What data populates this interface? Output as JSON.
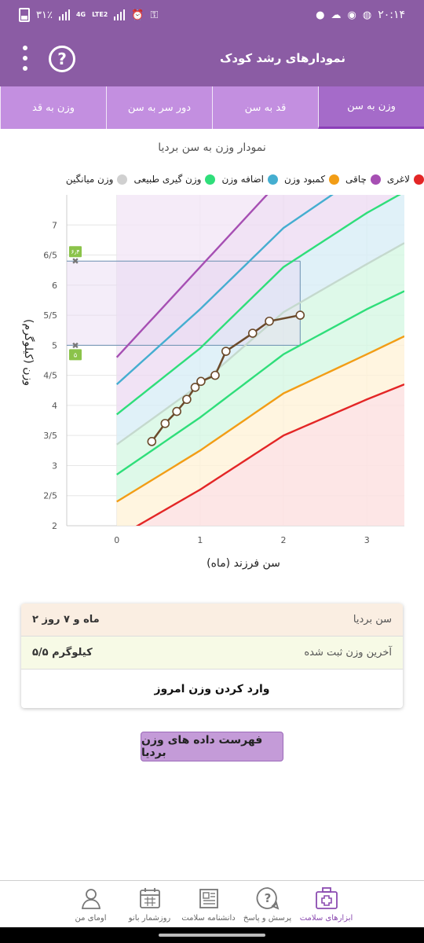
{
  "status_bar": {
    "time": "۲۰:۱۴",
    "battery": "۳۱٪",
    "network": [
      "4G",
      "LTE2"
    ]
  },
  "app_bar": {
    "title": "نمودارهای رشد کودک",
    "help_glyph": "?"
  },
  "tabs": [
    "وزن به سن",
    "قد به سن",
    "دور سر به سن",
    "وزن به قد"
  ],
  "chart_title": "نمودار وزن به سن بردیا",
  "legend": [
    {
      "label": "لاغری",
      "color": "#e32626"
    },
    {
      "label": "چاقی",
      "color": "#a64fb3"
    },
    {
      "label": "کمبود وزن",
      "color": "#f29d16"
    },
    {
      "label": "اضافه وزن",
      "color": "#45aed0"
    },
    {
      "label": "وزن گیری طبیعی",
      "color": "#2fde7a"
    },
    {
      "label": "وزن میانگین",
      "color": "#d0d0d0"
    }
  ],
  "chart_data": {
    "type": "line",
    "xlabel": "سن فرزند (ماه)",
    "ylabel": "وزن (کیلوگرم)",
    "xlim": [
      -0.6,
      3.45
    ],
    "ylim": [
      2,
      7.5
    ],
    "x_ticks": [
      "0",
      "1",
      "2",
      "3"
    ],
    "x_tick_values": [
      0,
      1,
      2,
      3
    ],
    "y_ticks": [
      "2",
      "2/5",
      "3",
      "3/5",
      "4",
      "4/5",
      "5",
      "5/5",
      "6",
      "6/5",
      "7"
    ],
    "y_tick_values": [
      2,
      2.5,
      3,
      3.5,
      4,
      4.5,
      5,
      5.5,
      6,
      6.5,
      7
    ],
    "reference_curves": [
      {
        "name": "لاغری",
        "color": "#e32626",
        "x": [
          0,
          1,
          2,
          3,
          3.45
        ],
        "y": [
          1.8,
          2.6,
          3.5,
          4.1,
          4.35
        ]
      },
      {
        "name": "کمبود وزن",
        "color": "#f29d16",
        "x": [
          0,
          1,
          2,
          3,
          3.45
        ],
        "y": [
          2.4,
          3.25,
          4.2,
          4.85,
          5.15
        ]
      },
      {
        "name": "وزن گیری طبیعی",
        "color": "#2fde7a",
        "x": [
          0,
          1,
          2,
          3,
          3.45
        ],
        "y": [
          2.85,
          3.8,
          4.85,
          5.6,
          5.9
        ]
      },
      {
        "name": "وزن میانگین",
        "color": "#c5d9ce",
        "x": [
          0,
          1,
          2,
          3,
          3.45
        ],
        "y": [
          3.35,
          4.35,
          5.55,
          6.35,
          6.7
        ]
      },
      {
        "name": "وزن گیری طبیعی",
        "color": "#2fde7a",
        "x": [
          0,
          1,
          2,
          3,
          3.45
        ],
        "y": [
          3.85,
          4.95,
          6.3,
          7.2,
          7.55
        ]
      },
      {
        "name": "اضافه وزن",
        "color": "#45aed0",
        "x": [
          0,
          1,
          2,
          2.95
        ],
        "y": [
          4.35,
          5.6,
          6.95,
          7.85
        ]
      },
      {
        "name": "چاقی",
        "color": "#a64fb3",
        "x": [
          0,
          1,
          1.8
        ],
        "y": [
          4.8,
          6.3,
          7.5
        ]
      }
    ],
    "child_series": {
      "name": "بردیا",
      "color": "#6b4a2b",
      "x": [
        0.42,
        0.58,
        0.72,
        0.84,
        0.94,
        1.01,
        1.18,
        1.31,
        1.63,
        1.83,
        2.2
      ],
      "y": [
        3.4,
        3.7,
        3.9,
        4.1,
        4.3,
        4.4,
        4.5,
        4.9,
        5.2,
        5.4,
        5.5
      ]
    },
    "range_markers": [
      {
        "label": "۶٫۴",
        "value": 6.4
      },
      {
        "label": "۵",
        "value": 5
      }
    ],
    "highlight_x": 2.2
  },
  "info": {
    "age_label": "سن بردیا",
    "age_value": "۲ ماه و ۷ روز",
    "weight_label": "آخرین وزن ثبت شده",
    "weight_value": "۵/۵ کیلوگرم",
    "enter_weight": "وارد کردن وزن امروز"
  },
  "list_button": "فهرست داده های وزن بردیا",
  "bottom_nav": [
    {
      "label": "ابزارهای سلامت",
      "icon": "medical-kit-icon",
      "active": true
    },
    {
      "label": "پرسش و پاسخ",
      "icon": "question-icon",
      "active": false
    },
    {
      "label": "دانشنامه سلامت",
      "icon": "encyclopedia-icon",
      "active": false
    },
    {
      "label": "روزشمار بانو",
      "icon": "calendar-icon",
      "active": false
    },
    {
      "label": "اومای من",
      "icon": "profile-icon",
      "active": false
    }
  ]
}
